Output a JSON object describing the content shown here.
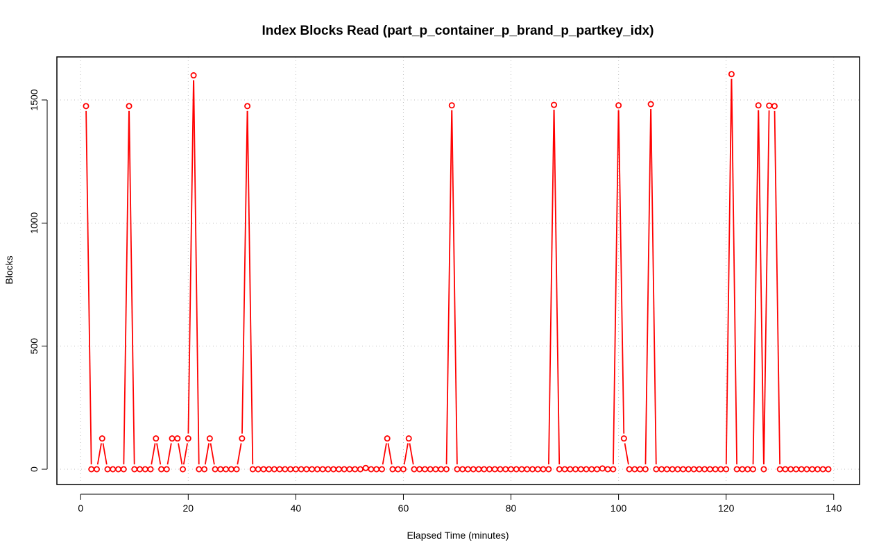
{
  "chart_data": {
    "type": "line",
    "title": "Index Blocks Read (part_p_container_p_brand_p_partkey_idx)",
    "xlabel": "Elapsed Time (minutes)",
    "ylabel": "Blocks",
    "xlim": [
      1,
      139
    ],
    "ylim": [
      0,
      1610
    ],
    "x_ticks": [
      0,
      20,
      40,
      60,
      80,
      100,
      120,
      140
    ],
    "y_ticks": [
      0,
      500,
      1000,
      1500
    ],
    "grid": true,
    "series": [
      {
        "color": "#ff0000",
        "x": [
          1,
          2,
          3,
          4,
          5,
          6,
          7,
          8,
          9,
          10,
          11,
          12,
          13,
          14,
          15,
          16,
          17,
          18,
          19,
          20,
          21,
          22,
          23,
          24,
          25,
          26,
          27,
          28,
          29,
          30,
          31,
          32,
          33,
          34,
          35,
          36,
          37,
          38,
          39,
          40,
          41,
          42,
          43,
          44,
          45,
          46,
          47,
          48,
          49,
          50,
          51,
          52,
          53,
          54,
          55,
          56,
          57,
          58,
          59,
          60,
          61,
          62,
          63,
          64,
          65,
          66,
          67,
          68,
          69,
          70,
          71,
          72,
          73,
          74,
          75,
          76,
          77,
          78,
          79,
          80,
          81,
          82,
          83,
          84,
          85,
          86,
          87,
          88,
          89,
          90,
          91,
          92,
          93,
          94,
          95,
          96,
          97,
          98,
          99,
          100,
          101,
          102,
          103,
          104,
          105,
          106,
          107,
          108,
          109,
          110,
          111,
          112,
          113,
          114,
          115,
          116,
          117,
          118,
          119,
          120,
          121,
          122,
          123,
          124,
          125,
          126,
          127,
          128,
          129,
          130,
          131,
          132,
          133,
          134,
          135,
          136,
          137,
          138,
          139
        ],
        "y": [
          1475,
          0,
          0,
          125,
          0,
          0,
          0,
          0,
          1475,
          0,
          0,
          0,
          0,
          125,
          0,
          0,
          125,
          125,
          0,
          125,
          1600,
          0,
          0,
          125,
          0,
          0,
          0,
          0,
          0,
          125,
          1475,
          0,
          0,
          0,
          0,
          0,
          0,
          0,
          0,
          0,
          0,
          0,
          0,
          0,
          0,
          0,
          0,
          0,
          0,
          0,
          0,
          0,
          5,
          0,
          0,
          0,
          125,
          0,
          0,
          0,
          125,
          0,
          0,
          0,
          0,
          0,
          0,
          0,
          1478,
          0,
          0,
          0,
          0,
          0,
          0,
          0,
          0,
          0,
          0,
          0,
          0,
          0,
          0,
          0,
          0,
          0,
          0,
          1480,
          0,
          0,
          0,
          0,
          0,
          0,
          0,
          0,
          3,
          0,
          0,
          1478,
          125,
          0,
          0,
          0,
          0,
          1483,
          0,
          0,
          0,
          0,
          0,
          0,
          0,
          0,
          0,
          0,
          0,
          0,
          0,
          0,
          1605,
          0,
          0,
          0,
          0,
          1478,
          0,
          1477,
          1475,
          0,
          0,
          0,
          0,
          0,
          0,
          0,
          0,
          0,
          0
        ]
      }
    ]
  }
}
